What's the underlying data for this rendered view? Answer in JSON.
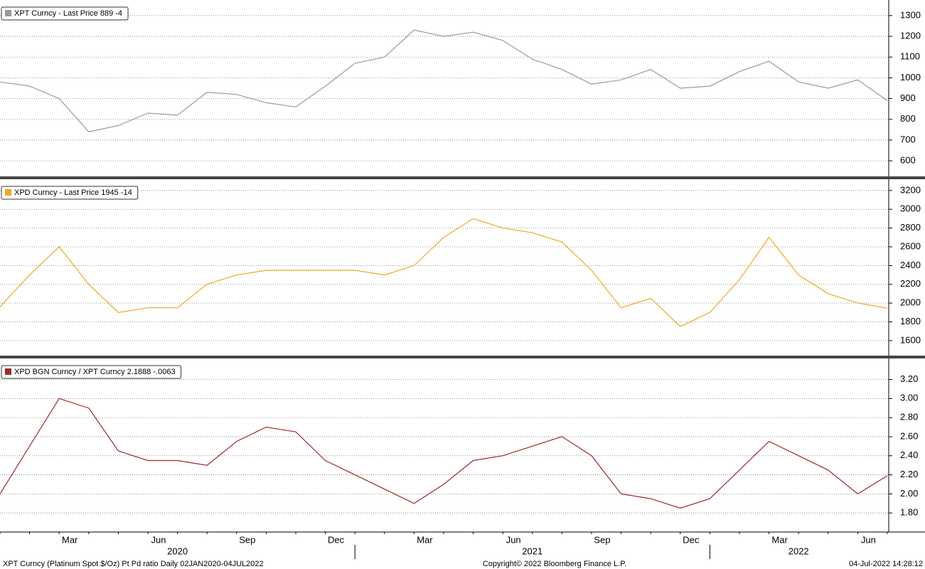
{
  "chart_data": [
    {
      "type": "line",
      "series": [
        {
          "name": "XPT Curncy - Last Price 889  -4",
          "color": "#9a9a9a",
          "values": [
            980,
            960,
            900,
            740,
            770,
            830,
            820,
            930,
            920,
            880,
            860,
            960,
            1070,
            1100,
            1230,
            1200,
            1220,
            1180,
            1090,
            1040,
            970,
            990,
            1040,
            950,
            960,
            1030,
            1080,
            980,
            950,
            990,
            890
          ]
        }
      ],
      "ylim": [
        525,
        1375
      ],
      "yticks": [
        600,
        700,
        800,
        900,
        1000,
        1100,
        1200,
        1300
      ],
      "grid": true
    },
    {
      "type": "line",
      "series": [
        {
          "name": "XPD Curncy - Last Price 1945  -14",
          "color": "#f0a81e",
          "values": [
            1960,
            2300,
            2600,
            2200,
            1900,
            1950,
            1950,
            2200,
            2300,
            2350,
            2350,
            2350,
            2350,
            2300,
            2400,
            2700,
            2900,
            2800,
            2750,
            2650,
            2350,
            1950,
            2050,
            1750,
            1900,
            2250,
            2700,
            2300,
            2100,
            2000,
            1945
          ]
        }
      ],
      "ylim": [
        1440,
        3320
      ],
      "yticks": [
        1600,
        1800,
        2000,
        2200,
        2400,
        2600,
        2800,
        3000,
        3200
      ],
      "grid": true
    },
    {
      "type": "line",
      "series": [
        {
          "name": "XPD BGN Curncy / XPT Curncy 2.1888  -.0063",
          "color": "#9e2a2a",
          "values": [
            2.0,
            2.5,
            3.0,
            2.9,
            2.45,
            2.35,
            2.35,
            2.3,
            2.55,
            2.7,
            2.65,
            2.35,
            2.2,
            2.05,
            1.9,
            2.1,
            2.35,
            2.4,
            2.5,
            2.6,
            2.4,
            2.0,
            1.95,
            1.85,
            1.95,
            2.25,
            2.55,
            2.4,
            2.25,
            2.0,
            2.19
          ]
        }
      ],
      "ylim": [
        1.6,
        3.42
      ],
      "yticks": [
        {
          "value": 1.8,
          "label": "1.80"
        },
        {
          "value": 2.0,
          "label": "2.00"
        },
        {
          "value": 2.2,
          "label": "2.20"
        },
        {
          "value": 2.4,
          "label": "2.40"
        },
        {
          "value": 2.6,
          "label": "2.60"
        },
        {
          "value": 2.8,
          "label": "2.80"
        },
        {
          "value": 3.0,
          "label": "3.00"
        },
        {
          "value": 3.2,
          "label": "3.20"
        }
      ],
      "grid": true,
      "categories": [
        null,
        null,
        "Mar",
        null,
        null,
        "Jun",
        null,
        null,
        "Sep",
        null,
        null,
        "Dec",
        null,
        null,
        "Mar",
        null,
        null,
        "Jun",
        null,
        null,
        "Sep",
        null,
        null,
        "Dec",
        null,
        null,
        "Mar",
        null,
        null,
        "Jun",
        null
      ],
      "years": [
        "2020",
        "2021",
        "2022"
      ]
    }
  ],
  "footer": {
    "left": "XPT Curncy (Platinum Spot  $/Oz) Pt Pd ratio  Daily 02JAN2020-04JUL2022",
    "center": "Copyright© 2022 Bloomberg Finance L.P.",
    "right": "04-Jul-2022 14:28:12"
  }
}
